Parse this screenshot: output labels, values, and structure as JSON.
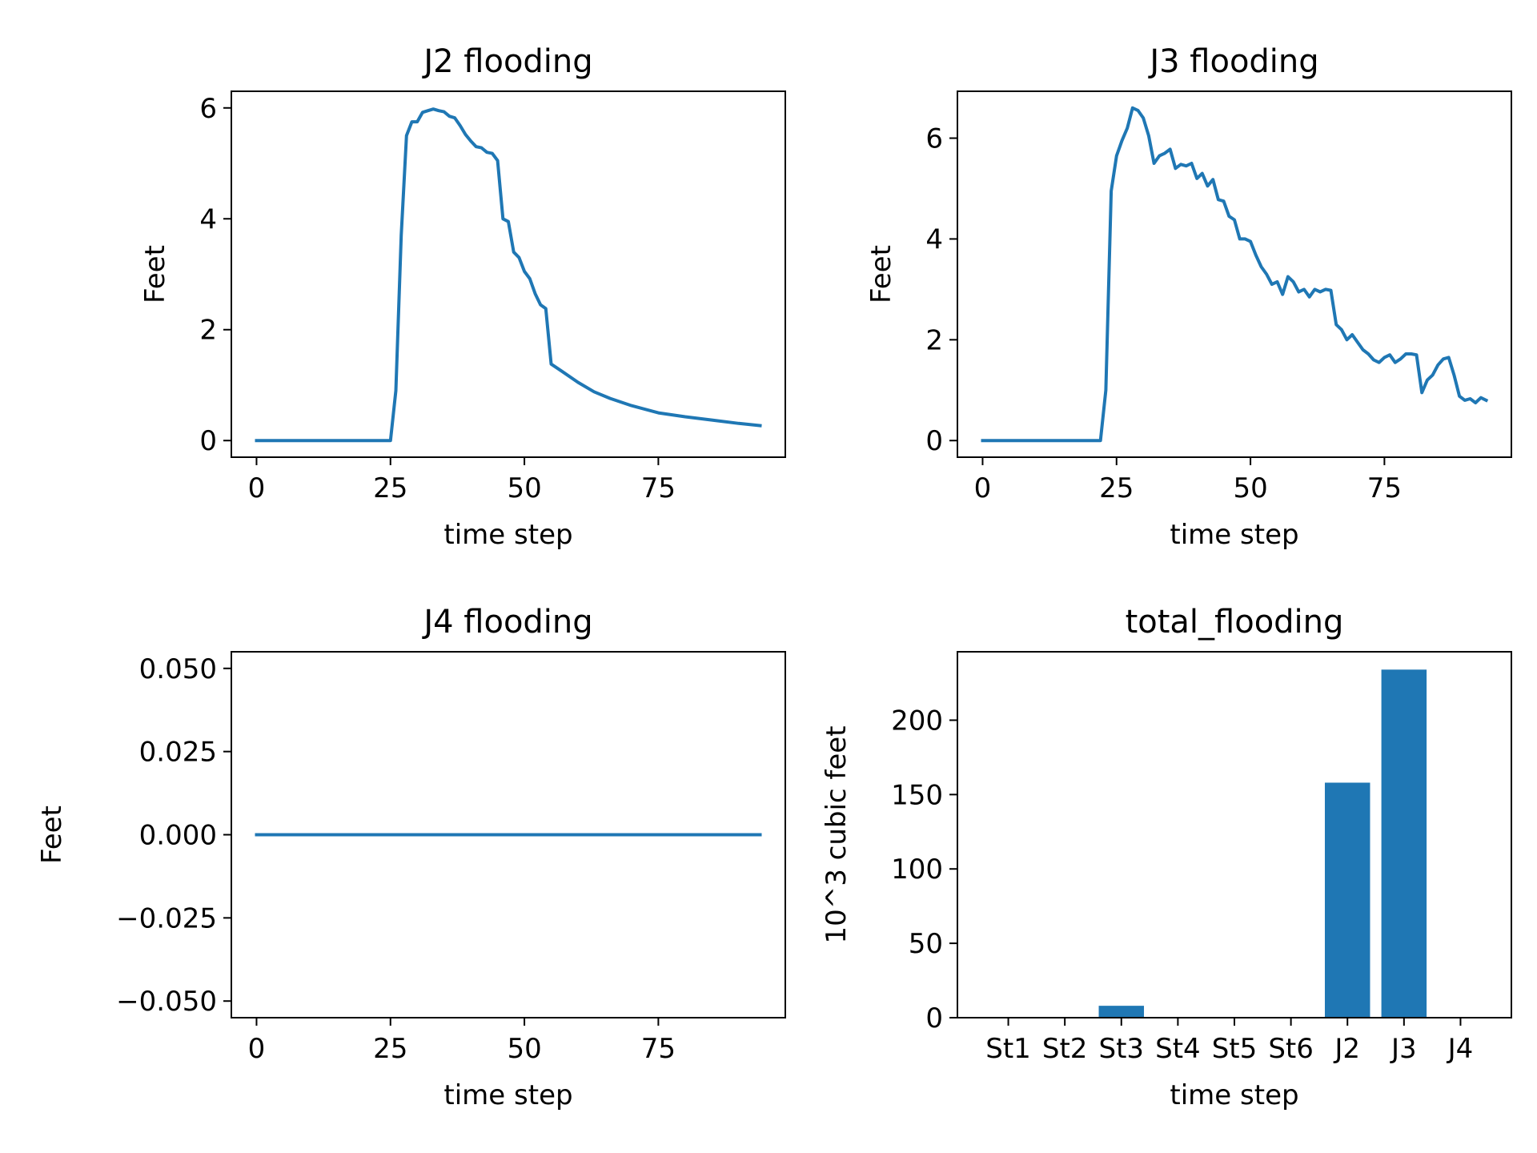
{
  "chart_data": [
    {
      "type": "line",
      "title": "J2 flooding",
      "xlabel": "time step",
      "ylabel": "Feet",
      "xlim": [
        -4.7,
        98.7
      ],
      "ylim": [
        -0.3,
        6.3
      ],
      "xticks": [
        0,
        25,
        50,
        75
      ],
      "xtick_labels": [
        "0",
        "25",
        "50",
        "75"
      ],
      "yticks": [
        0,
        2,
        4,
        6
      ],
      "ytick_labels": [
        "0",
        "2",
        "4",
        "6"
      ],
      "series": [
        {
          "x": [
            0,
            25,
            26,
            27,
            28,
            29,
            30,
            31,
            32,
            33,
            34,
            35,
            36,
            37,
            38,
            39,
            40,
            41,
            42,
            43,
            44,
            45,
            46,
            47,
            48,
            49,
            50,
            51,
            52,
            53,
            54,
            55,
            57,
            60,
            63,
            66,
            70,
            75,
            80,
            85,
            90,
            94
          ],
          "y": [
            0,
            0,
            0.9,
            3.7,
            5.5,
            5.75,
            5.75,
            5.92,
            5.95,
            5.98,
            5.95,
            5.93,
            5.85,
            5.82,
            5.68,
            5.52,
            5.4,
            5.3,
            5.28,
            5.2,
            5.18,
            5.05,
            4.0,
            3.95,
            3.4,
            3.3,
            3.05,
            2.92,
            2.65,
            2.45,
            2.38,
            1.38,
            1.25,
            1.05,
            0.88,
            0.76,
            0.63,
            0.5,
            0.43,
            0.37,
            0.31,
            0.27
          ],
          "color": "#1f77b4"
        }
      ]
    },
    {
      "type": "line",
      "title": "J3 flooding",
      "xlabel": "time step",
      "ylabel": "Feet",
      "xlim": [
        -4.7,
        98.7
      ],
      "ylim": [
        -0.33,
        6.93
      ],
      "xticks": [
        0,
        25,
        50,
        75
      ],
      "xtick_labels": [
        "0",
        "25",
        "50",
        "75"
      ],
      "yticks": [
        0,
        2,
        4,
        6
      ],
      "ytick_labels": [
        "0",
        "2",
        "4",
        "6"
      ],
      "series": [
        {
          "x": [
            0,
            22,
            23,
            24,
            25,
            26,
            27,
            28,
            29,
            30,
            31,
            32,
            33,
            34,
            35,
            36,
            37,
            38,
            39,
            40,
            41,
            42,
            43,
            44,
            45,
            46,
            47,
            48,
            49,
            50,
            51,
            52,
            53,
            54,
            55,
            56,
            57,
            58,
            59,
            60,
            61,
            62,
            63,
            64,
            65,
            66,
            67,
            68,
            69,
            70,
            71,
            72,
            73,
            74,
            75,
            76,
            77,
            78,
            79,
            80,
            81,
            82,
            83,
            84,
            85,
            86,
            87,
            88,
            89,
            90,
            91,
            92,
            93,
            94
          ],
          "y": [
            0,
            0,
            1.0,
            4.95,
            5.65,
            5.95,
            6.2,
            6.6,
            6.55,
            6.4,
            6.05,
            5.5,
            5.65,
            5.7,
            5.78,
            5.4,
            5.48,
            5.45,
            5.5,
            5.2,
            5.3,
            5.05,
            5.18,
            4.78,
            4.75,
            4.45,
            4.38,
            4.0,
            4.0,
            3.95,
            3.68,
            3.45,
            3.3,
            3.1,
            3.15,
            2.9,
            3.25,
            3.15,
            2.95,
            3.0,
            2.85,
            3.0,
            2.95,
            3.0,
            2.98,
            2.3,
            2.2,
            2.0,
            2.1,
            1.95,
            1.8,
            1.72,
            1.6,
            1.55,
            1.65,
            1.7,
            1.55,
            1.62,
            1.72,
            1.72,
            1.7,
            0.95,
            1.2,
            1.3,
            1.5,
            1.62,
            1.65,
            1.3,
            0.88,
            0.8,
            0.83,
            0.75,
            0.85,
            0.8
          ],
          "color": "#1f77b4"
        }
      ]
    },
    {
      "type": "line",
      "title": "J4 flooding",
      "xlabel": "time step",
      "ylabel": "Feet",
      "xlim": [
        -4.7,
        98.7
      ],
      "ylim": [
        -0.055,
        0.055
      ],
      "xticks": [
        0,
        25,
        50,
        75
      ],
      "xtick_labels": [
        "0",
        "25",
        "50",
        "75"
      ],
      "yticks": [
        0.05,
        0.025,
        0,
        -0.025,
        -0.05
      ],
      "ytick_labels": [
        "0.050",
        "0.025",
        "0.000",
        "−0.025",
        "−0.050"
      ],
      "series": [
        {
          "x": [
            0,
            94
          ],
          "y": [
            0,
            0
          ],
          "color": "#1f77b4"
        }
      ]
    },
    {
      "type": "bar",
      "title": "total_flooding",
      "xlabel": "time step",
      "ylabel": "10^3 cubic feet",
      "categories": [
        "St1",
        "St2",
        "St3",
        "St4",
        "St5",
        "St6",
        "J2",
        "J3",
        "J4"
      ],
      "values": [
        0,
        0,
        8,
        0,
        0,
        0,
        158,
        234,
        0
      ],
      "ylim": [
        0,
        246
      ],
      "yticks": [
        0,
        50,
        100,
        150,
        200
      ],
      "ytick_labels": [
        "0",
        "50",
        "100",
        "150",
        "200"
      ],
      "color": "#1f77b4"
    }
  ]
}
